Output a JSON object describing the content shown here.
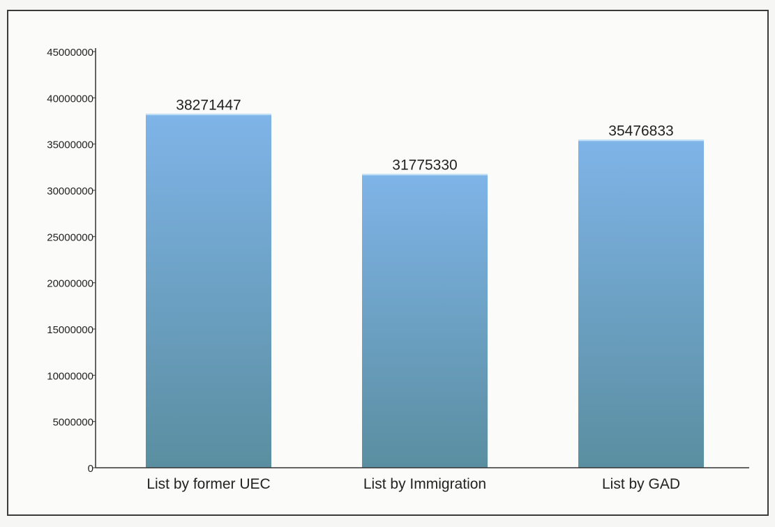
{
  "chart_data": {
    "type": "bar",
    "title": "",
    "xlabel": "",
    "ylabel": "",
    "categories": [
      "List by former UEC",
      "List by Immigration",
      "List by GAD"
    ],
    "values": [
      38271447,
      31775330,
      35476833
    ],
    "data_labels": [
      "38271447",
      "31775330",
      "35476833"
    ],
    "ylim": [
      0,
      45000000
    ],
    "yticks": [
      0,
      5000000,
      10000000,
      15000000,
      20000000,
      25000000,
      30000000,
      35000000,
      40000000,
      45000000
    ],
    "ytick_labels": [
      "0",
      "5000000",
      "10000000",
      "15000000",
      "20000000",
      "25000000",
      "30000000",
      "35000000",
      "40000000",
      "45000000"
    ],
    "grid": false,
    "legend": "none",
    "colors": {
      "bar_top": "#7fb4e8",
      "bar_bottom": "#5a8ea0",
      "axis": "#333333"
    }
  }
}
